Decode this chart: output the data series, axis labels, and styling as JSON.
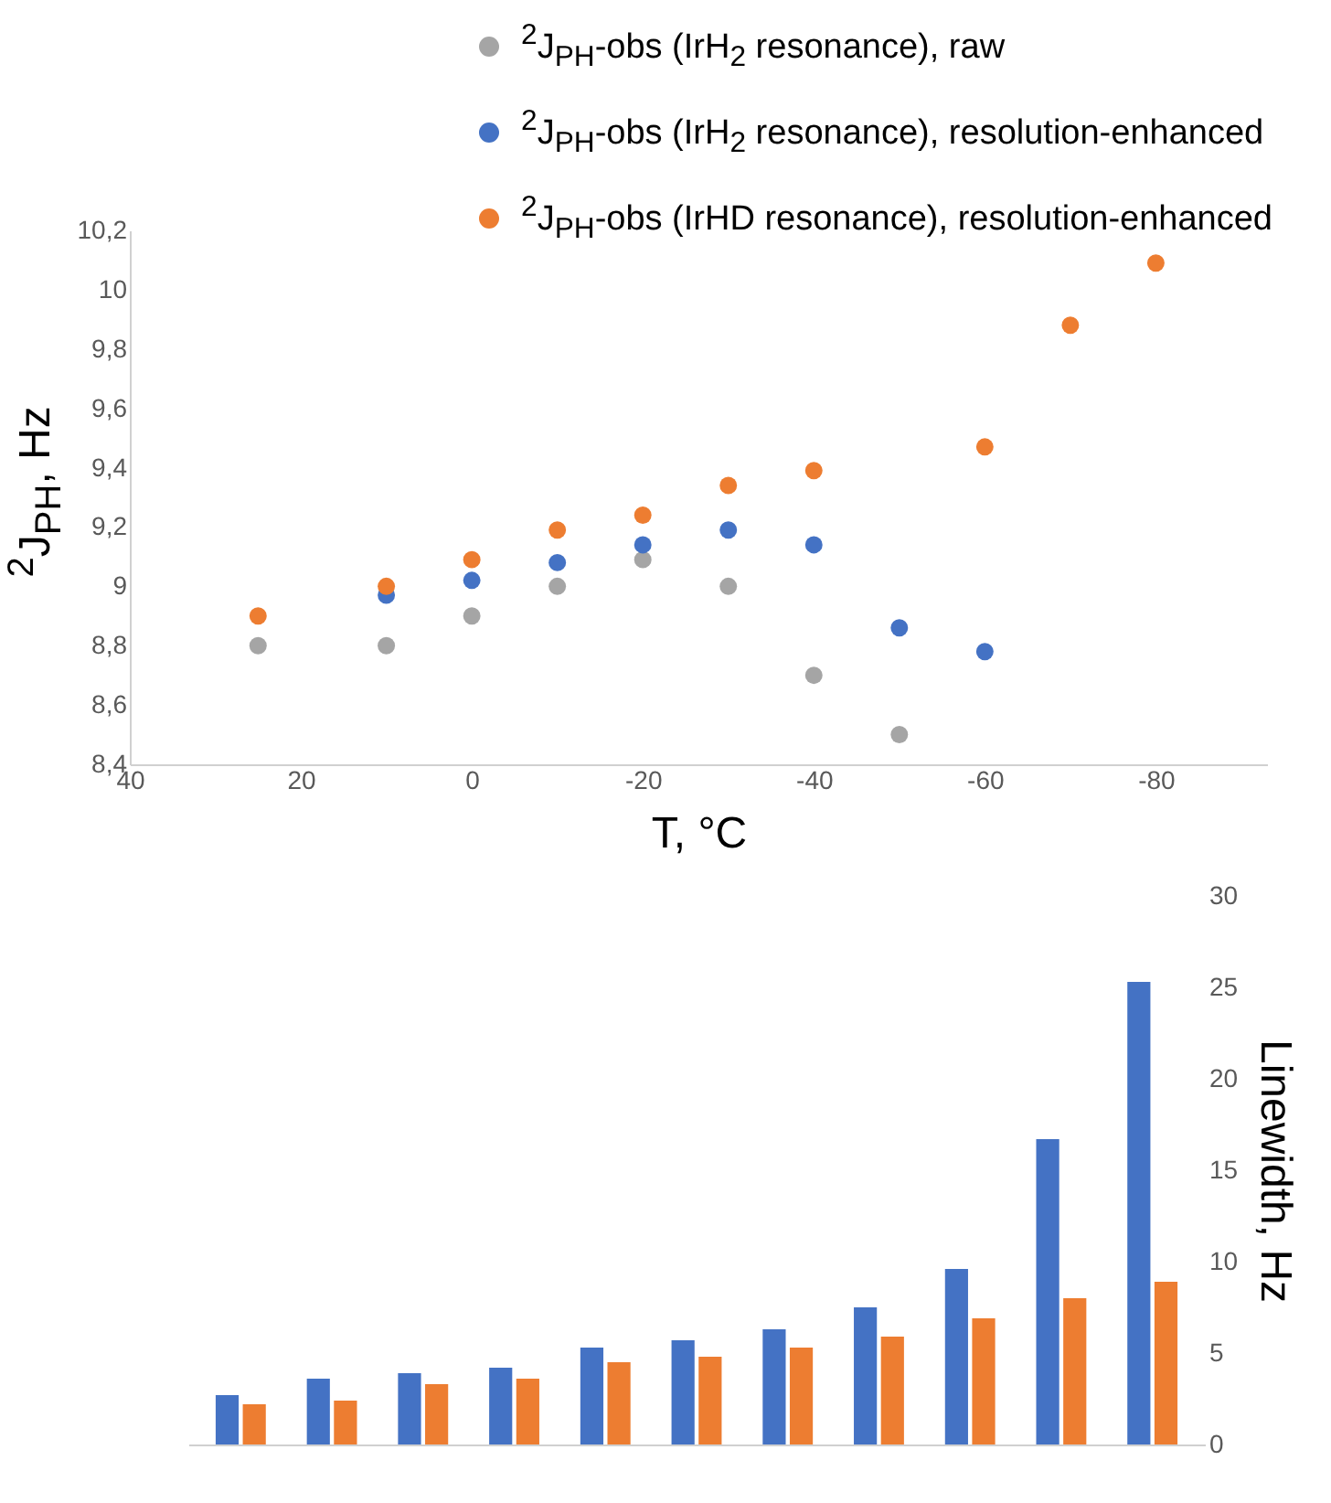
{
  "chart_data": [
    {
      "type": "scatter",
      "xlabel": "T, °C",
      "ylabel": "$^{2}$J$_{PH}$, Hz",
      "legend": "top",
      "marker": "circle",
      "x": [
        25,
        10,
        0,
        -10,
        -20,
        -30,
        -40,
        -50,
        -60,
        -70,
        -80
      ],
      "xlim": [
        40,
        -93
      ],
      "xticks": [
        40,
        20,
        0,
        -20,
        -40,
        -60,
        -80
      ],
      "ylim": [
        8.4,
        10.2
      ],
      "yticks": [
        {
          "value": 8.4,
          "label": "8,4"
        },
        {
          "value": 8.6,
          "label": "8,6"
        },
        {
          "value": 8.8,
          "label": "8,8"
        },
        9,
        {
          "value": 9.2,
          "label": "9,2"
        },
        {
          "value": 9.4,
          "label": "9,4"
        },
        {
          "value": 9.6,
          "label": "9,6"
        },
        {
          "value": 9.8,
          "label": "9,8"
        },
        10,
        {
          "value": 10.2,
          "label": "10,2"
        }
      ],
      "series": [
        {
          "name": "$^{2}$J$_{PH}$-obs (IrH$_{2}$ resonance), raw",
          "color": "#a5a5a5",
          "values": [
            8.8,
            8.8,
            8.9,
            9.0,
            9.09,
            9.0,
            8.7,
            8.5,
            null,
            null,
            null
          ]
        },
        {
          "name": "$^{2}$J$_{PH}$-obs (IrH$_{2}$ resonance), resolution-enhanced",
          "color": "#4472c4",
          "values": [
            null,
            8.97,
            9.02,
            9.08,
            9.14,
            9.19,
            9.14,
            8.86,
            8.78,
            null,
            null
          ]
        },
        {
          "name": "$^{2}$J$_{PH}$-obs (IrHD resonance), resolution-enhanced",
          "color": "#ed7d31",
          "values": [
            8.9,
            9.0,
            9.09,
            9.19,
            9.24,
            9.34,
            9.39,
            null,
            9.47,
            9.88,
            10.09
          ]
        }
      ]
    },
    {
      "type": "bar",
      "ylabel": "Linewidth, Hz",
      "tick_labels": "y",
      "categories": [
        null,
        null,
        null,
        null,
        null,
        null,
        null,
        null,
        null,
        null,
        null
      ],
      "ylim": [
        0,
        30
      ],
      "yticks": [
        0,
        5,
        10,
        15,
        20,
        25,
        30
      ],
      "series": [
        {
          "color": "#4472c4",
          "values": [
            2.7,
            3.6,
            3.9,
            4.2,
            5.3,
            5.7,
            6.3,
            7.5,
            9.6,
            16.7,
            25.3
          ]
        },
        {
          "color": "#ed7d31",
          "values": [
            2.2,
            2.4,
            3.3,
            3.6,
            4.5,
            4.8,
            5.3,
            5.9,
            6.9,
            8.0,
            8.9
          ]
        }
      ]
    }
  ]
}
